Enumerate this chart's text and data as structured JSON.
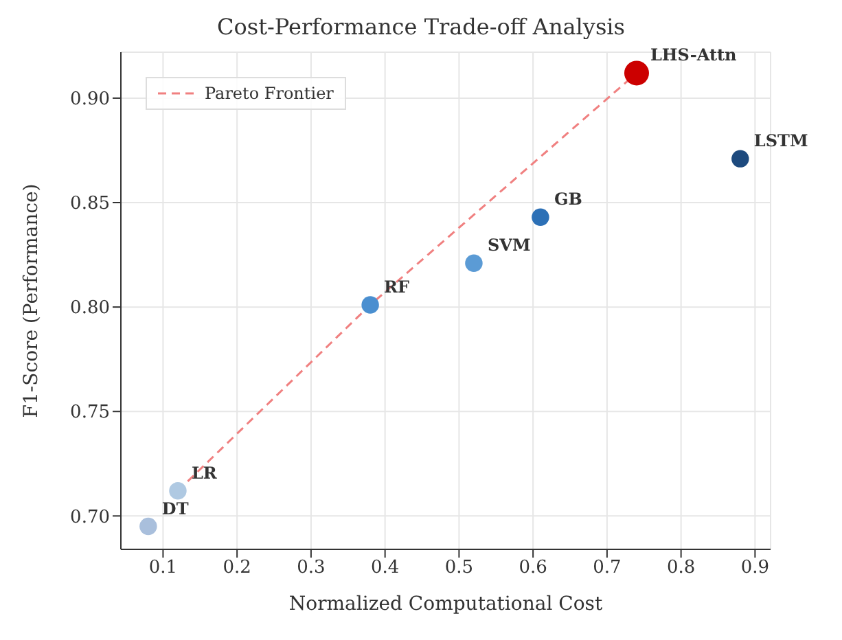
{
  "chart_data": {
    "type": "bubble",
    "title": "Cost-Performance Trade-off Analysis",
    "xlabel": "Normalized Computational Cost",
    "ylabel": "F1-Score (Performance)",
    "x": [
      0.08,
      0.12,
      0.38,
      0.52,
      0.61,
      0.74,
      0.88
    ],
    "values": [
      0.695,
      0.712,
      0.801,
      0.821,
      0.843,
      0.912,
      0.871
    ],
    "sizes": [
      0.5,
      0.5,
      0.5,
      0.5,
      0.5,
      1,
      0.5
    ],
    "colors": [
      "#a9bfdc",
      "#afc9e2",
      "#4a8fd0",
      "#5b9bd5",
      "#2c70b6",
      "#cc0000",
      "#1d4a7e"
    ],
    "series": [
      {
        "name": "Pareto Frontier",
        "type": "line",
        "color": "#f08080",
        "line_style": "dashed",
        "x": [
          0.12,
          0.38,
          0.74
        ],
        "values": [
          0.712,
          0.801,
          0.912
        ]
      }
    ],
    "annotations": [
      {
        "text": "DT",
        "x": 0.08,
        "y": 0.695
      },
      {
        "text": "LR",
        "x": 0.12,
        "y": 0.712
      },
      {
        "text": "RF",
        "x": 0.38,
        "y": 0.801
      },
      {
        "text": "SVM",
        "x": 0.52,
        "y": 0.821
      },
      {
        "text": "GB",
        "x": 0.61,
        "y": 0.843
      },
      {
        "text": "LHS-Attn",
        "x": 0.74,
        "y": 0.912
      },
      {
        "text": "LSTM",
        "x": 0.88,
        "y": 0.871
      }
    ],
    "xlim": [
      0.043,
      0.921
    ],
    "ylim": [
      0.684,
      0.922
    ],
    "xticks": [
      {
        "value": 0.1,
        "label": "0.1"
      },
      {
        "value": 0.2,
        "label": "0.2"
      },
      {
        "value": 0.3,
        "label": "0.3"
      },
      {
        "value": 0.4,
        "label": "0.4"
      },
      {
        "value": 0.5,
        "label": "0.5"
      },
      {
        "value": 0.6,
        "label": "0.6"
      },
      {
        "value": 0.7,
        "label": "0.7"
      },
      {
        "value": 0.8,
        "label": "0.8"
      },
      {
        "value": 0.9,
        "label": "0.9"
      }
    ],
    "yticks": [
      {
        "value": 0.7,
        "label": "0.70"
      },
      {
        "value": 0.75,
        "label": "0.75"
      },
      {
        "value": 0.8,
        "label": "0.80"
      },
      {
        "value": 0.85,
        "label": "0.85"
      },
      {
        "value": 0.9,
        "label": "0.90"
      }
    ],
    "grid": true,
    "legend": "top left"
  }
}
